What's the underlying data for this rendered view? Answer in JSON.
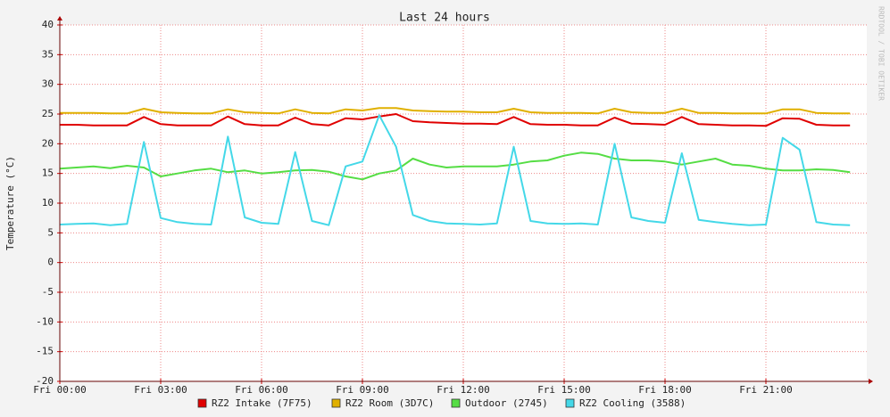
{
  "chart_data": {
    "type": "line",
    "title": "Last 24 hours",
    "y_label": "Temperature (°C)",
    "watermark": "RRDTOOL / TOBI OETIKER",
    "x": [
      0,
      0.5,
      1,
      1.5,
      2,
      2.5,
      3,
      3.5,
      4,
      4.5,
      5,
      5.5,
      6,
      6.5,
      7,
      7.5,
      8,
      8.5,
      9,
      9.5,
      10,
      10.5,
      11,
      11.5,
      12,
      12.5,
      13,
      13.5,
      14,
      14.5,
      15,
      15.5,
      16,
      16.5,
      17,
      17.5,
      18,
      18.5,
      19,
      19.5,
      20,
      20.5,
      21,
      21.5,
      22,
      22.5,
      23,
      23.5
    ],
    "xlim": [
      0,
      24
    ],
    "xticks": [
      {
        "value": 0,
        "label": "Fri 00:00"
      },
      {
        "value": 3,
        "label": "Fri 03:00"
      },
      {
        "value": 6,
        "label": "Fri 06:00"
      },
      {
        "value": 9,
        "label": "Fri 09:00"
      },
      {
        "value": 12,
        "label": "Fri 12:00"
      },
      {
        "value": 15,
        "label": "Fri 15:00"
      },
      {
        "value": 18,
        "label": "Fri 18:00"
      },
      {
        "value": 21,
        "label": "Fri 21:00"
      }
    ],
    "ylim": [
      -20,
      40
    ],
    "yticks": [
      -20,
      -15,
      -10,
      -5,
      0,
      5,
      10,
      15,
      20,
      25,
      30,
      35,
      40
    ],
    "grid": true,
    "series": [
      {
        "name": "RZ2 Intake (7F75)",
        "color": "#e00000",
        "values": [
          23.2,
          23.2,
          23.1,
          23.1,
          23.1,
          24.5,
          23.3,
          23.1,
          23.1,
          23.1,
          24.6,
          23.3,
          23.1,
          23.1,
          24.4,
          23.3,
          23.1,
          24.3,
          24.1,
          24.6,
          25.0,
          23.8,
          23.6,
          23.5,
          23.4,
          23.4,
          23.3,
          24.5,
          23.3,
          23.2,
          23.2,
          23.1,
          23.1,
          24.4,
          23.4,
          23.3,
          23.2,
          24.5,
          23.3,
          23.2,
          23.1,
          23.1,
          23.0,
          24.3,
          24.2,
          23.2,
          23.1,
          23.1
        ]
      },
      {
        "name": "RZ2 Room (3D7C)",
        "color": "#e0b000",
        "values": [
          25.2,
          25.2,
          25.2,
          25.1,
          25.1,
          25.9,
          25.3,
          25.2,
          25.1,
          25.1,
          25.8,
          25.3,
          25.2,
          25.1,
          25.8,
          25.2,
          25.1,
          25.8,
          25.6,
          26.0,
          26.0,
          25.6,
          25.5,
          25.4,
          25.4,
          25.3,
          25.3,
          25.9,
          25.3,
          25.2,
          25.2,
          25.2,
          25.1,
          25.9,
          25.3,
          25.2,
          25.2,
          25.9,
          25.2,
          25.2,
          25.1,
          25.1,
          25.1,
          25.8,
          25.8,
          25.2,
          25.1,
          25.1
        ]
      },
      {
        "name": "Outdoor (2745)",
        "color": "#55dd44",
        "values": [
          15.8,
          16.0,
          16.2,
          15.9,
          16.3,
          16.0,
          14.5,
          15.0,
          15.5,
          15.8,
          15.2,
          15.5,
          15.0,
          15.2,
          15.5,
          15.6,
          15.3,
          14.5,
          14.0,
          15.0,
          15.5,
          17.5,
          16.5,
          16.0,
          16.2,
          16.2,
          16.2,
          16.5,
          17.0,
          17.2,
          18.0,
          18.5,
          18.3,
          17.5,
          17.2,
          17.2,
          17.0,
          16.5,
          17.0,
          17.5,
          16.5,
          16.3,
          15.8,
          15.5,
          15.5,
          15.7,
          15.6,
          15.2
        ]
      },
      {
        "name": "RZ2 Cooling (3588)",
        "color": "#44d8e8",
        "values": [
          6.4,
          6.5,
          6.6,
          6.3,
          6.5,
          20.3,
          7.5,
          6.8,
          6.5,
          6.4,
          21.2,
          7.6,
          6.7,
          6.5,
          18.6,
          7.0,
          6.3,
          16.2,
          17.0,
          24.8,
          19.5,
          8.0,
          7.0,
          6.6,
          6.5,
          6.4,
          6.6,
          19.5,
          7.0,
          6.6,
          6.5,
          6.6,
          6.4,
          20.0,
          7.6,
          7.0,
          6.7,
          18.4,
          7.2,
          6.8,
          6.5,
          6.3,
          6.4,
          21.0,
          19.0,
          6.8,
          6.4,
          6.3
        ]
      }
    ]
  }
}
